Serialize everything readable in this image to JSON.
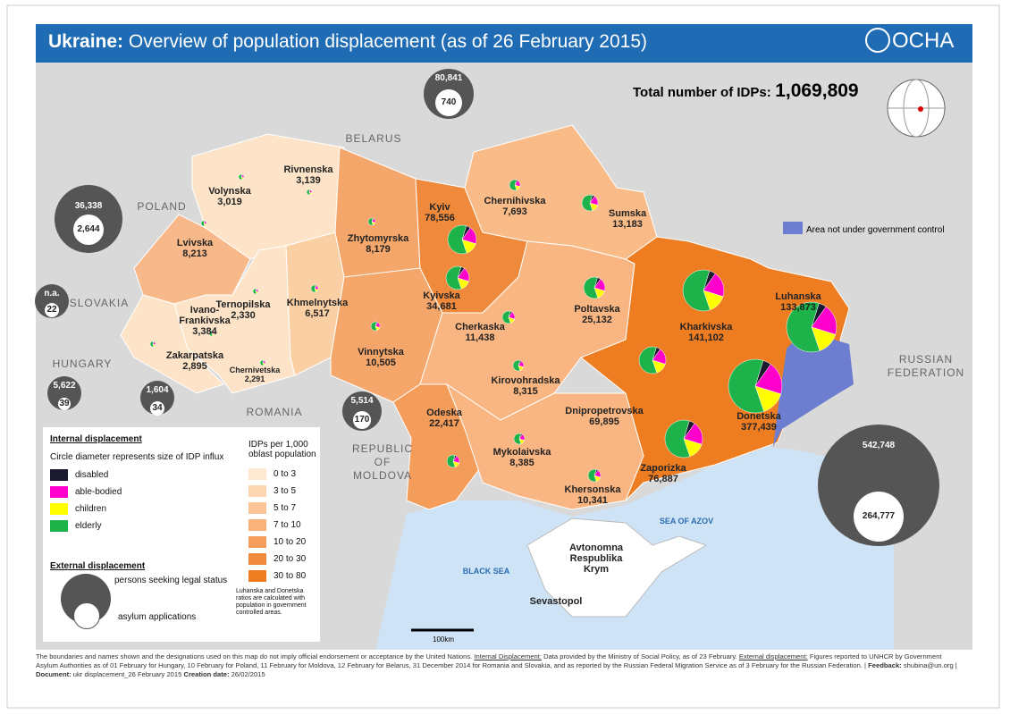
{
  "header": {
    "title_bold": "Ukraine:",
    "title": "Overview of population displacement (as of 26 February 2015)",
    "logo": "OCHA"
  },
  "total": {
    "label": "Total number of IDPs:",
    "value": "1,069,809"
  },
  "countries": [
    {
      "lines": [
        "BELARUS"
      ]
    },
    {
      "lines": [
        "POLAND"
      ]
    },
    {
      "lines": [
        "SLOVAKIA"
      ]
    },
    {
      "lines": [
        "HUNGARY"
      ]
    },
    {
      "lines": [
        "ROMANIA"
      ]
    },
    {
      "lines": [
        "REPUBLIC",
        "OF",
        "MOLDOVA"
      ]
    },
    {
      "lines": [
        "RUSSIAN",
        "FEDERATION"
      ]
    }
  ],
  "seas": [
    "BLACK SEA",
    "SEA OF AZOV"
  ],
  "oblasts": [
    {
      "name": "Volynska",
      "idps": "3,019"
    },
    {
      "name": "Rivnenska",
      "idps": "3,139"
    },
    {
      "name": "Lvivska",
      "idps": "8,213"
    },
    {
      "name": "Ternopilska",
      "idps": "2,330"
    },
    {
      "name": "Khmelnytska",
      "idps": "6,517"
    },
    {
      "name": "Ivano-Frankivska",
      "idps": "3,384"
    },
    {
      "name": "Zakarpatska",
      "idps": "2,895"
    },
    {
      "name": "Chernivetska",
      "idps": "2,291"
    },
    {
      "name": "Zhytomyrska",
      "idps": "8,179"
    },
    {
      "name": "Kyiv",
      "idps": "78,556"
    },
    {
      "name": "Kyivska",
      "idps": "34,681"
    },
    {
      "name": "Vinnytska",
      "idps": "10,505"
    },
    {
      "name": "Chernihivska",
      "idps": "7,693"
    },
    {
      "name": "Sumska",
      "idps": "13,183"
    },
    {
      "name": "Poltavska",
      "idps": "25,132"
    },
    {
      "name": "Cherkaska",
      "idps": "11,438"
    },
    {
      "name": "Kirovohradska",
      "idps": "8,315"
    },
    {
      "name": "Kharkivska",
      "idps": "141,102"
    },
    {
      "name": "Luhanska",
      "idps": "133,873"
    },
    {
      "name": "Donetska",
      "idps": "377,439"
    },
    {
      "name": "Dnipropetrovska",
      "idps": "69,895"
    },
    {
      "name": "Zaporizka",
      "idps": "76,887"
    },
    {
      "name": "Khersonska",
      "idps": "10,341"
    },
    {
      "name": "Mykolaivska",
      "idps": "8,385"
    },
    {
      "name": "Odeska",
      "idps": "22,417"
    }
  ],
  "crimea": {
    "name": "Avtonomna Respublika Krym",
    "city": "Sevastopol"
  },
  "external": [
    {
      "seeking": "80,841",
      "asylum": "740"
    },
    {
      "seeking": "36,338",
      "asylum": "2,644"
    },
    {
      "seeking": "n.a.",
      "asylum": "22"
    },
    {
      "seeking": "5,622",
      "asylum": "39"
    },
    {
      "seeking": "1,604",
      "asylum": "34"
    },
    {
      "seeking": "5,514",
      "asylum": "170"
    },
    {
      "seeking": "542,748",
      "asylum": "264,777"
    }
  ],
  "non_government_area": "Area not under government control",
  "legend": {
    "internal_title": "Internal displacement",
    "circle_note": "Circle diameter represents size of IDP influx",
    "groups": [
      "disabled",
      "able-bodied",
      "children",
      "elderly"
    ],
    "density_title": "IDPs per 1,000 oblast population",
    "density_classes": [
      "0 to 3",
      "3 to 5",
      "5 to 7",
      "7  to 10",
      "10 to 20",
      "20 to 30",
      "30 to 80"
    ],
    "density_note": "Luhanska and Donetska ratios are calculated with population in government controlled areas.",
    "external_title": "External displacement",
    "seeking": "persons seeking legal status",
    "asylum": "asylum applications"
  },
  "scale": "100km",
  "footer": {
    "disclaimer": "The boundaries and names shown and the designations used on this map do not imply official endorsement or acceptance by the United Nations.",
    "internal_label": "Internal Displacement:",
    "internal_text": "Data provided by the Ministry of Social Policy, as of 23 February.",
    "external_label": "External displacement:",
    "external_text": "Figures reported to UNHCR by Government Asylum Authorities as of 01 February for Hungary, 10 February for Poland, 11 February for Moldova, 12 February for Belarus, 31 December 2014 for Romania and Slovakia, and as reported by the Russian Federal Migration Service as of 3 February for the Russian Federation.",
    "feedback_label": "Feedback:",
    "feedback": "shubina@un.org",
    "document_label": "Document:",
    "document": "ukr displacement_26 February 2015",
    "date_label": "Creation date:",
    "date": "26/02/2015"
  }
}
